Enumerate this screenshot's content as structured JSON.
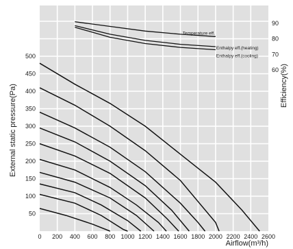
{
  "chart_data": {
    "type": "line",
    "xlabel": "Airflow(m³/h)",
    "ylabel": "External static pressure(Pa)",
    "y2label": "Efficiency(%)",
    "xlim": [
      0,
      2600
    ],
    "ylim": [
      0,
      640
    ],
    "y2lim": [
      0,
      100
    ],
    "x_ticks": [
      0,
      200,
      400,
      600,
      800,
      1000,
      1200,
      1400,
      1600,
      1800,
      2000,
      2200,
      2400,
      2600
    ],
    "y_ticks": [
      50,
      100,
      150,
      200,
      250,
      300,
      350,
      400,
      450,
      500
    ],
    "y2_ticks": [
      60,
      70,
      80,
      90
    ],
    "grid": true,
    "background": "#e0e0e0",
    "pressure_curves": [
      {
        "points": [
          [
            0,
            480
          ],
          [
            400,
            420
          ],
          [
            800,
            365
          ],
          [
            1200,
            300
          ],
          [
            1600,
            220
          ],
          [
            2000,
            140
          ],
          [
            2300,
            60
          ],
          [
            2500,
            0
          ]
        ]
      },
      {
        "points": [
          [
            0,
            410
          ],
          [
            400,
            360
          ],
          [
            800,
            300
          ],
          [
            1200,
            230
          ],
          [
            1600,
            145
          ],
          [
            2000,
            25
          ],
          [
            2040,
            0
          ]
        ]
      },
      {
        "points": [
          [
            0,
            340
          ],
          [
            400,
            295
          ],
          [
            800,
            240
          ],
          [
            1200,
            170
          ],
          [
            1600,
            80
          ],
          [
            1800,
            25
          ],
          [
            1880,
            0
          ]
        ]
      },
      {
        "points": [
          [
            0,
            295
          ],
          [
            400,
            255
          ],
          [
            800,
            200
          ],
          [
            1200,
            130
          ],
          [
            1500,
            60
          ],
          [
            1700,
            0
          ]
        ]
      },
      {
        "points": [
          [
            0,
            250
          ],
          [
            400,
            215
          ],
          [
            800,
            165
          ],
          [
            1200,
            95
          ],
          [
            1450,
            35
          ],
          [
            1580,
            0
          ]
        ]
      },
      {
        "points": [
          [
            0,
            205
          ],
          [
            400,
            175
          ],
          [
            800,
            125
          ],
          [
            1100,
            75
          ],
          [
            1350,
            25
          ],
          [
            1440,
            0
          ]
        ]
      },
      {
        "points": [
          [
            0,
            168
          ],
          [
            400,
            140
          ],
          [
            800,
            95
          ],
          [
            1100,
            45
          ],
          [
            1300,
            0
          ]
        ]
      },
      {
        "points": [
          [
            0,
            135
          ],
          [
            400,
            110
          ],
          [
            700,
            75
          ],
          [
            1000,
            30
          ],
          [
            1150,
            0
          ]
        ]
      },
      {
        "points": [
          [
            0,
            105
          ],
          [
            400,
            80
          ],
          [
            700,
            45
          ],
          [
            950,
            5
          ],
          [
            1000,
            0
          ]
        ]
      },
      {
        "points": [
          [
            0,
            65
          ],
          [
            300,
            45
          ],
          [
            600,
            20
          ],
          [
            800,
            0
          ]
        ]
      }
    ],
    "efficiency_curves": [
      {
        "name": "Temperature eff.",
        "points": [
          [
            400,
            91
          ],
          [
            800,
            88
          ],
          [
            1200,
            85
          ],
          [
            1600,
            83
          ],
          [
            2000,
            81.5
          ]
        ]
      },
      {
        "name": "Enthalpy eff.(heating)",
        "points": [
          [
            400,
            88.5
          ],
          [
            800,
            83
          ],
          [
            1200,
            79
          ],
          [
            1600,
            76.5
          ],
          [
            2000,
            75
          ]
        ]
      },
      {
        "name": "Enthalpy eff.(cooling)",
        "points": [
          [
            400,
            87.5
          ],
          [
            800,
            81
          ],
          [
            1200,
            77
          ],
          [
            1600,
            74.5
          ],
          [
            2000,
            73
          ]
        ]
      }
    ]
  }
}
